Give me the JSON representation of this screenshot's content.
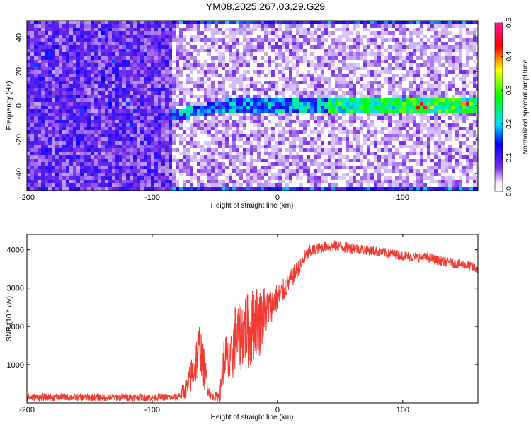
{
  "title": "YM08.2025.267.03.29.G29",
  "chart_data": [
    {
      "type": "heatmap",
      "xlabel": "Height of straight line (km)",
      "ylabel": "Frequency (Hz)",
      "xlim": [
        -200,
        160
      ],
      "ylim": [
        -50,
        50
      ],
      "xticks": [
        -200,
        -100,
        0,
        100
      ],
      "xtick_labels": [
        "-200",
        "-100",
        "0",
        "100"
      ],
      "yticks": [
        -40,
        -20,
        0,
        20,
        40
      ],
      "ytick_labels": [
        "-40",
        "-20",
        "0",
        "20",
        "40"
      ],
      "colorbar": {
        "label": "Normalized spectral amplitude",
        "range": [
          0,
          0.5
        ],
        "ticks": [
          0,
          0.1,
          0.2,
          0.3,
          0.4,
          0.5
        ],
        "tick_labels": [
          "0.0",
          "0.1",
          "0.2",
          "0.3",
          "0.4",
          "0.5"
        ],
        "colors": [
          "#ffffff",
          "#7a2ee8",
          "#0000ff",
          "#00e0ff",
          "#00ff00",
          "#ffff00",
          "#ff0000",
          "#ff1a90"
        ]
      },
      "features": {
        "carrier_line_start_km": -85,
        "carrier_frequency_hz": 0,
        "noise_boundary_km": -85,
        "edge_band_frequencies_hz": [
          -50,
          50
        ]
      }
    },
    {
      "type": "line",
      "xlabel": "Height of straight line (km)",
      "ylabel": "SNR (10 * v/v)",
      "xlim": [
        -200,
        160
      ],
      "ylim": [
        0,
        4400
      ],
      "xticks": [
        -200,
        -100,
        0,
        100
      ],
      "xtick_labels": [
        "-200",
        "-100",
        "0",
        "100"
      ],
      "yticks": [
        1000,
        2000,
        3000,
        4000
      ],
      "ytick_labels": [
        "1000",
        "2000",
        "3000",
        "4000"
      ],
      "color": "#f03a32",
      "series": [
        {
          "name": "SNR",
          "x": [
            -200,
            -180,
            -160,
            -140,
            -120,
            -100,
            -80,
            -72,
            -66,
            -62,
            -58,
            -54,
            -50,
            -46,
            -42,
            -38,
            -34,
            -30,
            -26,
            -22,
            -18,
            -14,
            -10,
            -6,
            -2,
            2,
            6,
            10,
            14,
            18,
            22,
            26,
            30,
            35,
            40,
            45,
            50,
            55,
            60,
            70,
            80,
            90,
            100,
            110,
            120,
            130,
            140,
            150,
            160
          ],
          "y": [
            150,
            150,
            150,
            150,
            150,
            150,
            150,
            400,
            1000,
            1500,
            800,
            200,
            150,
            200,
            1300,
            900,
            1700,
            1700,
            2000,
            1800,
            2200,
            2100,
            2400,
            2500,
            2700,
            2800,
            3000,
            3200,
            3400,
            3550,
            3800,
            3950,
            4000,
            4050,
            4100,
            4100,
            4100,
            4050,
            4050,
            4000,
            3950,
            3900,
            3850,
            3800,
            3800,
            3700,
            3650,
            3600,
            3500
          ],
          "noise_amplitude": [
            100,
            100,
            100,
            100,
            100,
            100,
            100,
            300,
            600,
            700,
            500,
            100,
            100,
            200,
            700,
            600,
            900,
            900,
            1000,
            1000,
            1000,
            900,
            700,
            500,
            400,
            350,
            300,
            280,
            250,
            220,
            200,
            180,
            150,
            150,
            150,
            150,
            150,
            150,
            150,
            130,
            130,
            130,
            130,
            130,
            130,
            130,
            130,
            130,
            130
          ]
        }
      ]
    }
  ]
}
